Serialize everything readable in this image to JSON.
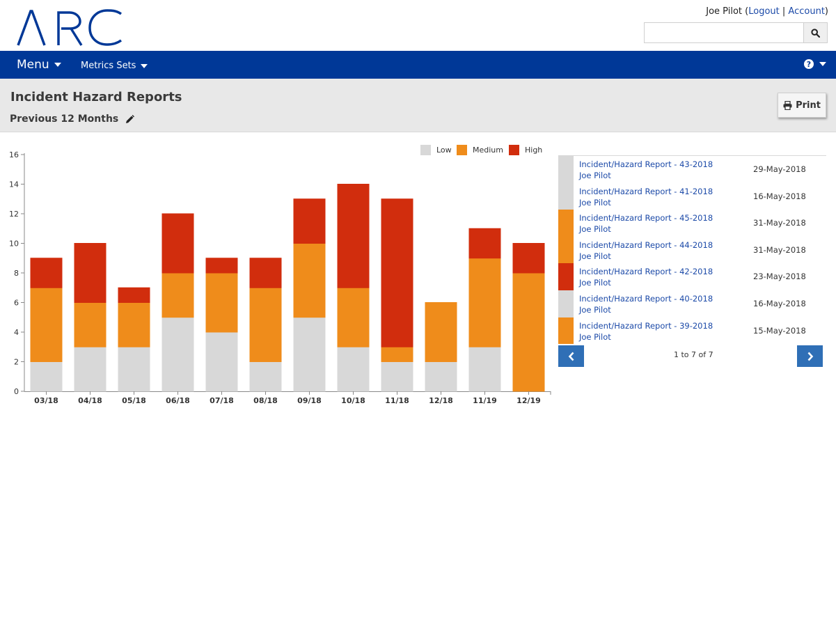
{
  "app": {
    "logo_text": "ARC"
  },
  "user": {
    "name": "Joe Pilot",
    "logout": "Logout",
    "separator": "|",
    "account": "Account"
  },
  "search": {
    "placeholder": "",
    "value": ""
  },
  "nav": {
    "menu_label": "Menu",
    "metrics_label": "Metrics Sets"
  },
  "header": {
    "title": "Incident Hazard Reports",
    "period": "Previous 12 Months",
    "print_label": "Print"
  },
  "colors": {
    "navy": "#003897",
    "low": "#d8d8d8",
    "medium": "#ef8c1b",
    "high": "#d12d0d",
    "link": "#1c4aa8",
    "pager": "#2f6fb6"
  },
  "chart_data": {
    "type": "bar",
    "stacked": true,
    "categories": [
      "03/18",
      "04/18",
      "05/18",
      "06/18",
      "07/18",
      "08/18",
      "09/18",
      "10/18",
      "11/18",
      "12/18",
      "11/19",
      "12/19"
    ],
    "series": [
      {
        "name": "Low",
        "color": "#d8d8d8",
        "values": [
          2,
          3,
          3,
          5,
          4,
          2,
          5,
          3,
          2,
          2,
          3,
          0
        ]
      },
      {
        "name": "Medium",
        "color": "#ef8c1b",
        "values": [
          5,
          3,
          3,
          3,
          4,
          5,
          5,
          4,
          1,
          4,
          6,
          8
        ]
      },
      {
        "name": "High",
        "color": "#d12d0d",
        "values": [
          2,
          4,
          1,
          4,
          1,
          2,
          3,
          7,
          10,
          0,
          2,
          2
        ]
      }
    ],
    "yticks": [
      0,
      2,
      4,
      6,
      8,
      10,
      12,
      14,
      16
    ],
    "ylim": [
      0,
      16
    ],
    "legend_position": "top-right",
    "grid": false
  },
  "reports": [
    {
      "title": "Incident/Hazard Report - 43-2018",
      "user": "Joe Pilot",
      "date": "29-May-2018",
      "severity": "low"
    },
    {
      "title": "Incident/Hazard Report - 41-2018",
      "user": "Joe Pilot",
      "date": "16-May-2018",
      "severity": "low"
    },
    {
      "title": "Incident/Hazard Report - 45-2018",
      "user": "Joe Pilot",
      "date": "31-May-2018",
      "severity": "medium"
    },
    {
      "title": "Incident/Hazard Report - 44-2018",
      "user": "Joe Pilot",
      "date": "31-May-2018",
      "severity": "medium"
    },
    {
      "title": "Incident/Hazard Report - 42-2018",
      "user": "Joe Pilot",
      "date": "23-May-2018",
      "severity": "high"
    },
    {
      "title": "Incident/Hazard Report - 40-2018",
      "user": "Joe Pilot",
      "date": "16-May-2018",
      "severity": "low"
    },
    {
      "title": "Incident/Hazard Report - 39-2018",
      "user": "Joe Pilot",
      "date": "15-May-2018",
      "severity": "medium"
    }
  ],
  "pager": {
    "info": "1 to 7 of 7"
  },
  "icons": {
    "search": "search-icon",
    "help": "question-circle-icon",
    "edit": "pencil-icon",
    "print": "print-icon",
    "prev": "chevron-left-icon",
    "next": "chevron-right-icon"
  }
}
